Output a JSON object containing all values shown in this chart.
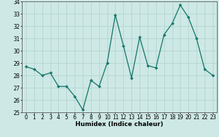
{
  "x": [
    0,
    1,
    2,
    3,
    4,
    5,
    6,
    7,
    8,
    9,
    10,
    11,
    12,
    13,
    14,
    15,
    16,
    17,
    18,
    19,
    20,
    21,
    22,
    23
  ],
  "y": [
    28.7,
    28.5,
    28.0,
    28.2,
    27.1,
    27.1,
    26.3,
    25.2,
    27.6,
    27.1,
    29.0,
    32.9,
    30.4,
    27.8,
    31.1,
    28.8,
    28.6,
    31.3,
    32.2,
    33.7,
    32.7,
    31.0,
    28.5,
    28.0
  ],
  "line_color": "#1a7a6e",
  "marker": "D",
  "marker_size": 2.0,
  "line_width": 1.0,
  "bg_color": "#cde8e5",
  "grid_color": "#aed0cc",
  "xlabel": "Humidex (Indice chaleur)",
  "ylim": [
    25,
    34
  ],
  "yticks": [
    25,
    26,
    27,
    28,
    29,
    30,
    31,
    32,
    33,
    34
  ],
  "xticks": [
    0,
    1,
    2,
    3,
    4,
    5,
    6,
    7,
    8,
    9,
    10,
    11,
    12,
    13,
    14,
    15,
    16,
    17,
    18,
    19,
    20,
    21,
    22,
    23
  ],
  "xlabel_fontsize": 6.5,
  "tick_fontsize": 5.5
}
